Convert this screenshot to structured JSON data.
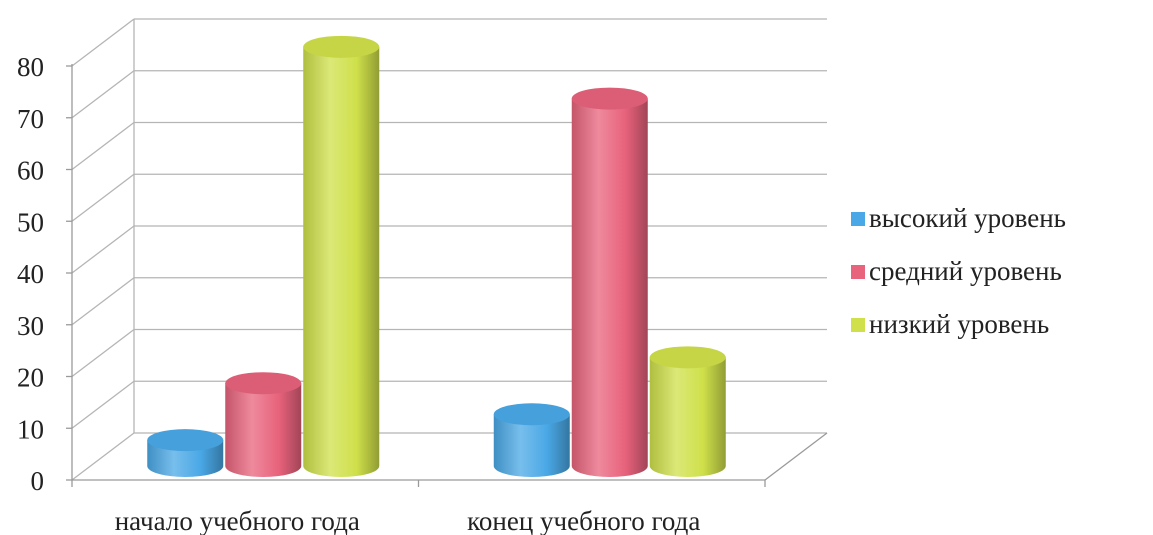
{
  "chart_data": {
    "type": "bar",
    "style": "3d-cylinder",
    "categories": [
      "начало учебного года",
      "конец учебного года"
    ],
    "series": [
      {
        "name": "высокий уровень",
        "values": [
          5,
          10
        ],
        "color": "#4aa8e6"
      },
      {
        "name": "средний уровень",
        "values": [
          16,
          71
        ],
        "color": "#e8637c"
      },
      {
        "name": "низкий уровень",
        "values": [
          81,
          21
        ],
        "color": "#cfe04a"
      }
    ],
    "y_ticks": [
      "0",
      "10",
      "20",
      "30",
      "40",
      "50",
      "60",
      "70",
      "80"
    ],
    "ylim": [
      0,
      80
    ],
    "title": "",
    "xlabel": "",
    "ylabel": "",
    "grid": true,
    "legend_position": "right"
  }
}
